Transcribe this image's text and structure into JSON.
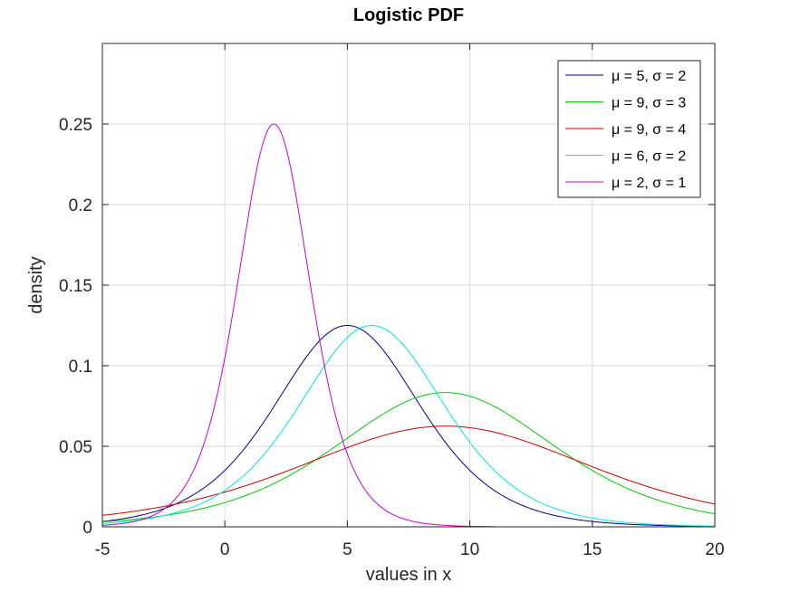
{
  "chart_data": {
    "type": "line",
    "title": "Logistic PDF",
    "xlabel": "values in x",
    "ylabel": "density",
    "xlim": [
      -5,
      20
    ],
    "ylim": [
      0,
      0.3
    ],
    "xticks": [
      -5,
      0,
      5,
      10,
      15,
      20
    ],
    "yticks": [
      0,
      0.05,
      0.1,
      0.15,
      0.2,
      0.25
    ],
    "xtick_labels": [
      "-5",
      "0",
      "5",
      "10",
      "15",
      "20"
    ],
    "ytick_labels": [
      "0",
      "0.05",
      "0.1",
      "0.15",
      "0.2",
      "0.25"
    ],
    "grid": true,
    "legend_position": "top-right",
    "series": [
      {
        "name": "μ = 5, σ = 2",
        "mu": 5,
        "sigma": 2,
        "color": "#00008b",
        "x_range": [
          -5,
          20
        ]
      },
      {
        "name": "μ = 9, σ = 3",
        "mu": 9,
        "sigma": 3,
        "color": "#00cc00",
        "x_range": [
          -5,
          20
        ]
      },
      {
        "name": "μ = 9, σ = 4",
        "mu": 9,
        "sigma": 4,
        "color": "#cc0000",
        "x_range": [
          -5,
          20
        ]
      },
      {
        "name": "μ = 6, σ = 2",
        "mu": 6,
        "sigma": 2,
        "color": "#00e5e5",
        "x_range": [
          -5,
          20
        ]
      },
      {
        "name": "μ = 2, σ = 1",
        "mu": 2,
        "sigma": 1,
        "color": "#cc00cc",
        "x_range": [
          -5,
          11
        ]
      }
    ]
  }
}
